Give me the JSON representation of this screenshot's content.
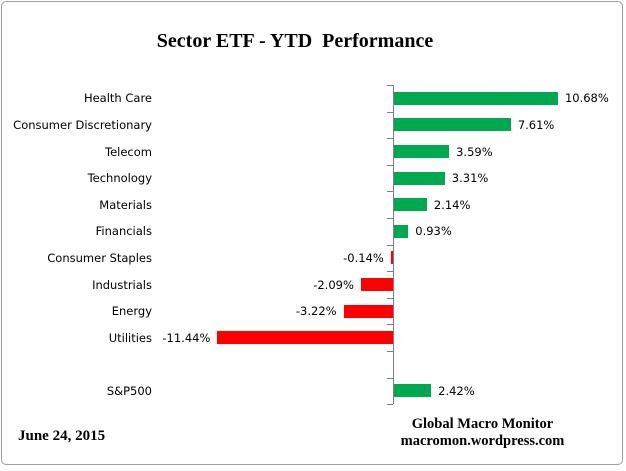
{
  "title": "Sector ETF - YTD  Performance",
  "footer": {
    "date": "June 24, 2015",
    "credit_line1": "Global Macro Monitor",
    "credit_line2": "macromon.wordpress.com"
  },
  "chart_data": {
    "type": "bar",
    "orientation": "horizontal",
    "title": "Sector ETF - YTD  Performance",
    "categories": [
      "Health Care",
      "Consumer Discretionary",
      "Telecom",
      "Technology",
      "Materials",
      "Financials",
      "Consumer Staples",
      "Industrials",
      "Energy",
      "Utilities",
      "S&P500"
    ],
    "values": [
      10.68,
      7.61,
      3.59,
      3.31,
      2.14,
      0.93,
      -0.14,
      -2.09,
      -3.22,
      -11.44,
      2.42
    ],
    "value_labels": [
      "10.68%",
      "7.61%",
      "3.59%",
      "3.31%",
      "2.14%",
      "0.93%",
      "-0.14%",
      "-2.09%",
      "-3.22%",
      "-11.44%",
      "2.42%"
    ],
    "gap_row_index": 10,
    "xlim": [
      -11.44,
      10.68
    ],
    "grid": false,
    "legend": false,
    "positive_color": "#00A850",
    "negative_color": "#FF0000",
    "axis_color": "#808080",
    "text_color": "#000000"
  }
}
